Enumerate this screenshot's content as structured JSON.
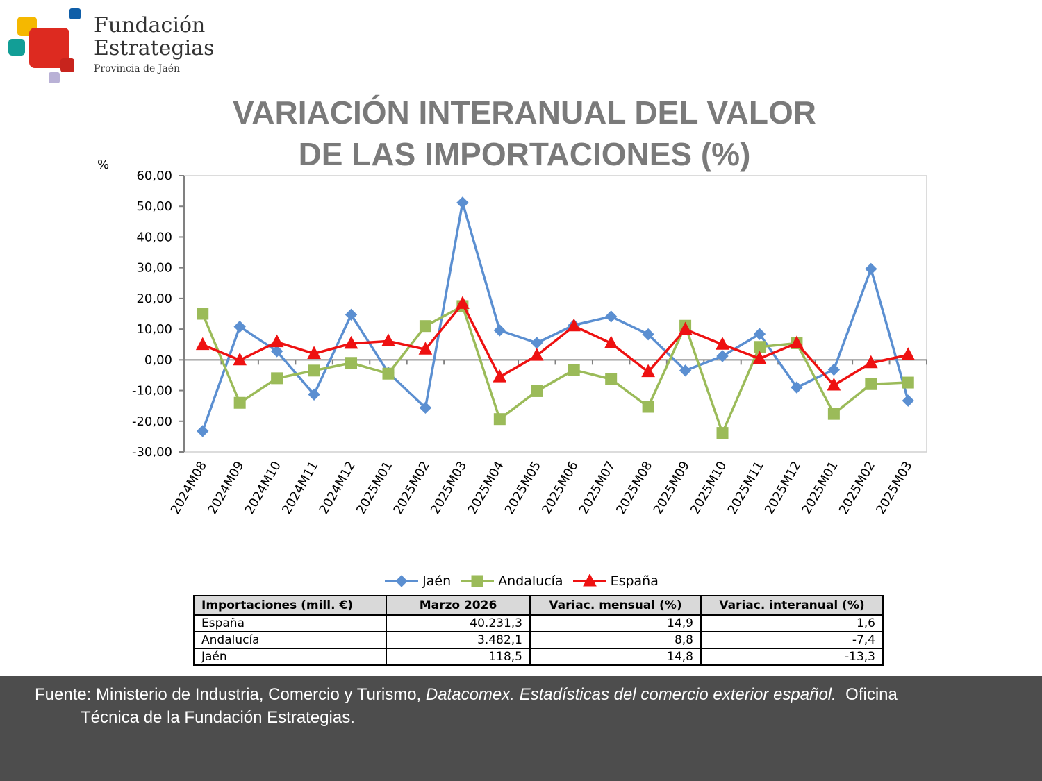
{
  "logo": {
    "line1": "Fundación",
    "line2": "Estrategias",
    "line3": "Provincia de Jaén"
  },
  "chart_data": {
    "type": "line",
    "title": "VARIACIÓN INTERANUAL DEL VALOR DE LAS IMPORTACIONES (%)",
    "title_lines": [
      "VARIACIÓN INTERANUAL DEL VALOR",
      "DE LAS IMPORTACIONES (%)"
    ],
    "ylabel": "%",
    "xlabel": "",
    "ylim": [
      -30,
      60
    ],
    "yticks": [
      60,
      50,
      40,
      30,
      20,
      10,
      0,
      -10,
      -20,
      -30
    ],
    "ytick_labels": [
      "60,00",
      "50,00",
      "40,00",
      "30,00",
      "20,00",
      "10,00",
      "0,00",
      "-10,00",
      "-20,00",
      "-30,00"
    ],
    "categories": [
      "2024M08",
      "2024M09",
      "2024M10",
      "2024M11",
      "2024M12",
      "2025M01",
      "2025M02",
      "2025M03",
      "2025M04",
      "2025M05",
      "2025M06",
      "2025M07",
      "2025M08",
      "2025M09",
      "2025M10",
      "2025M11",
      "2025M12",
      "2025M01",
      "2025M02",
      "2025M03"
    ],
    "series": [
      {
        "name": "Jaén",
        "color": "#5b8fd1",
        "marker": "diamond",
        "values": [
          -23.2,
          10.8,
          2.8,
          -11.3,
          14.7,
          -4.2,
          -15.6,
          51.2,
          9.6,
          5.5,
          11.3,
          14.1,
          8.3,
          -3.5,
          1.2,
          8.4,
          -9.0,
          -3.2,
          29.6,
          -13.3
        ]
      },
      {
        "name": "Andalucía",
        "color": "#9bbb59",
        "marker": "square",
        "values": [
          15.0,
          -14.0,
          -6.0,
          -3.5,
          -1.0,
          -4.5,
          11.0,
          17.5,
          -19.3,
          -10.2,
          -3.3,
          -6.3,
          -15.3,
          11.1,
          -23.8,
          4.2,
          5.4,
          -17.6,
          -7.9,
          -7.4
        ]
      },
      {
        "name": "España",
        "color": "#ee1111",
        "marker": "triangle",
        "values": [
          4.9,
          -0.1,
          5.8,
          2.0,
          5.3,
          6.1,
          3.4,
          18.3,
          -5.6,
          1.4,
          11.0,
          5.4,
          -3.9,
          9.9,
          5.0,
          0.4,
          5.4,
          -8.3,
          -1.0,
          1.6
        ]
      }
    ],
    "legend_position": "bottom",
    "grid": false
  },
  "table": {
    "headers": [
      "Importaciones (mill. €)",
      "Marzo 2026",
      "Variac. mensual (%)",
      "Variac. interanual (%)"
    ],
    "rows": [
      [
        "España",
        "40.231,3",
        "14,9",
        "1,6"
      ],
      [
        "Andalucía",
        "3.482,1",
        "8,8",
        "-7,4"
      ],
      [
        "Jaén",
        "118,5",
        "14,8",
        "-13,3"
      ]
    ]
  },
  "footer": {
    "part1": "Fuente: Ministerio de Industria, Comercio y Turismo, ",
    "italic": "Datacomex. Estadísticas del comercio exterior español.",
    "part2": "  Oficina",
    "line2": "Técnica de la Fundación Estrategias."
  },
  "colors": {
    "logo_yellow": "#f5b800",
    "logo_red": "#dd2a20",
    "logo_teal": "#129e96",
    "logo_blue": "#0f5ea8",
    "logo_lilac": "#b9b1d6",
    "title_gray": "#7a7a7a",
    "footer_bg": "#4d4d4d"
  }
}
